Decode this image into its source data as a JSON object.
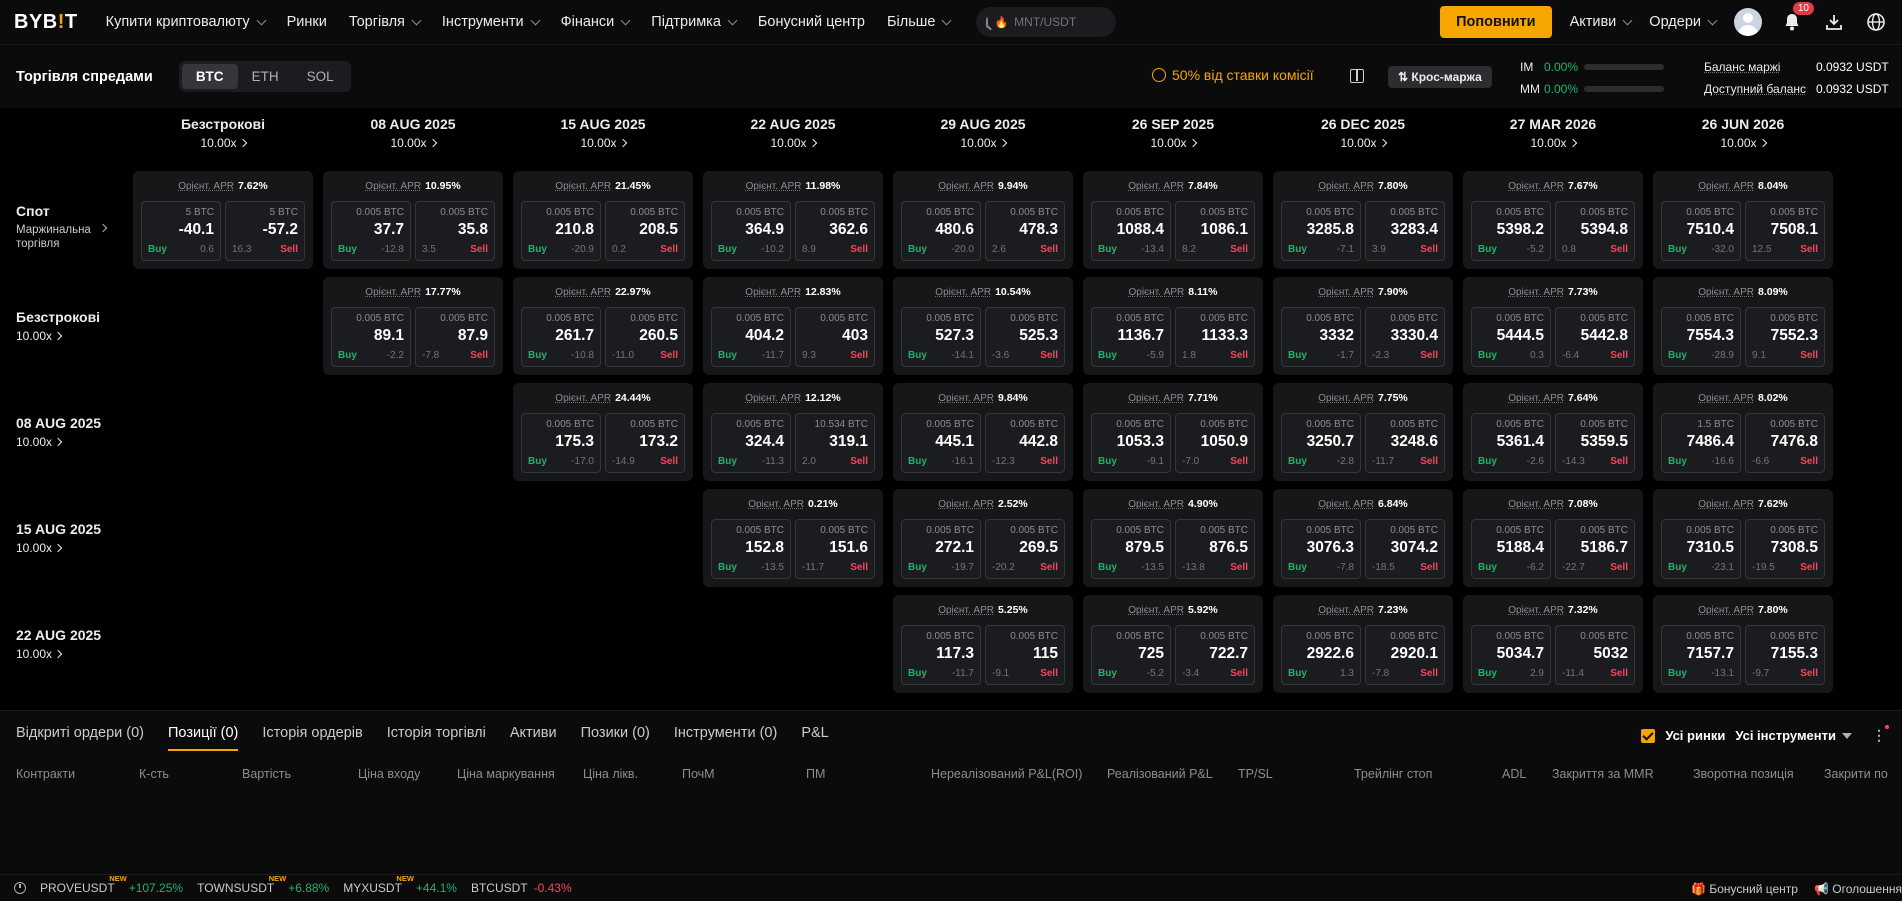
{
  "brand": {
    "logo_pre": "BYB",
    "logo_acc": "!",
    "logo_post": "T"
  },
  "nav": {
    "items": [
      {
        "label": "Купити криптовалюту",
        "dropdown": true
      },
      {
        "label": "Ринки",
        "dropdown": false
      },
      {
        "label": "Торгівля",
        "dropdown": true
      },
      {
        "label": "Інструменти",
        "dropdown": true
      },
      {
        "label": "Фінанси",
        "dropdown": true
      },
      {
        "label": "Підтримка",
        "dropdown": true
      },
      {
        "label": "Бонусний центр",
        "dropdown": false
      },
      {
        "label": "Більше",
        "dropdown": true
      }
    ],
    "search_placeholder": "MNT/USDT",
    "deposit_label": "Поповнити",
    "assets_label": "Активи",
    "orders_label": "Ордери",
    "notifications_count": "10"
  },
  "subheader": {
    "title": "Торгівля спредами",
    "coins": [
      "BTC",
      "ETH",
      "SOL"
    ],
    "active_coin": "BTC",
    "fee_promo": "50% від ставки комісії",
    "cross_margin_label": "Крос-маржа",
    "im_label": "IM",
    "im_value": "0.00%",
    "mm_label": "MM",
    "mm_value": "0.00%",
    "margin_balance_label": "Баланс маржі",
    "margin_balance_value": "0.0932 USDT",
    "available_balance_label": "Доступний баланс",
    "available_balance_value": "0.0932 USDT"
  },
  "matrix": {
    "apr_label": "Орієнт. APR",
    "buy_label": "Buy",
    "sell_label": "Sell",
    "columns": [
      {
        "date": "Безстрокові",
        "lev": "10.00x"
      },
      {
        "date": "08 AUG 2025",
        "lev": "10.00x"
      },
      {
        "date": "15 AUG 2025",
        "lev": "10.00x"
      },
      {
        "date": "22 AUG 2025",
        "lev": "10.00x"
      },
      {
        "date": "29 AUG 2025",
        "lev": "10.00x"
      },
      {
        "date": "26 SEP 2025",
        "lev": "10.00x"
      },
      {
        "date": "26 DEC 2025",
        "lev": "10.00x"
      },
      {
        "date": "27 MAR 2026",
        "lev": "10.00x"
      },
      {
        "date": "26 JUN 2026",
        "lev": "10.00x"
      }
    ],
    "rows": [
      {
        "title": "Спот",
        "sub": "Маржинальна торгівля",
        "kind": "spot"
      },
      {
        "title": "Безстрокові",
        "sub": "10.00x",
        "kind": "lev"
      },
      {
        "title": "08 AUG 2025",
        "sub": "10.00x",
        "kind": "lev"
      },
      {
        "title": "15 AUG 2025",
        "sub": "10.00x",
        "kind": "lev"
      },
      {
        "title": "22 AUG 2025",
        "sub": "10.00x",
        "kind": "lev"
      }
    ],
    "cells": [
      {
        "row": 0,
        "col": 0,
        "apr": "7.62%",
        "bsz": "5 BTC",
        "bp": "-40.1",
        "bch": "0.6",
        "ssz": "5 BTC",
        "sp": "-57.2",
        "sch": "16.3"
      },
      {
        "row": 0,
        "col": 1,
        "apr": "10.95%",
        "bsz": "0.005 BTC",
        "bp": "37.7",
        "bch": "-12.8",
        "ssz": "0.005 BTC",
        "sp": "35.8",
        "sch": "3.5"
      },
      {
        "row": 0,
        "col": 2,
        "apr": "21.45%",
        "bsz": "0.005 BTC",
        "bp": "210.8",
        "bch": "-20.9",
        "ssz": "0.005 BTC",
        "sp": "208.5",
        "sch": "0.2"
      },
      {
        "row": 0,
        "col": 3,
        "apr": "11.98%",
        "bsz": "0.005 BTC",
        "bp": "364.9",
        "bch": "-10.2",
        "ssz": "0.005 BTC",
        "sp": "362.6",
        "sch": "8.9"
      },
      {
        "row": 0,
        "col": 4,
        "apr": "9.94%",
        "bsz": "0.005 BTC",
        "bp": "480.6",
        "bch": "-20.0",
        "ssz": "0.005 BTC",
        "sp": "478.3",
        "sch": "2.6"
      },
      {
        "row": 0,
        "col": 5,
        "apr": "7.84%",
        "bsz": "0.005 BTC",
        "bp": "1088.4",
        "bch": "-13.4",
        "ssz": "0.005 BTC",
        "sp": "1086.1",
        "sch": "8.2"
      },
      {
        "row": 0,
        "col": 6,
        "apr": "7.80%",
        "bsz": "0.005 BTC",
        "bp": "3285.8",
        "bch": "-7.1",
        "ssz": "0.005 BTC",
        "sp": "3283.4",
        "sch": "3.9"
      },
      {
        "row": 0,
        "col": 7,
        "apr": "7.67%",
        "bsz": "0.005 BTC",
        "bp": "5398.2",
        "bch": "-5.2",
        "ssz": "0.005 BTC",
        "sp": "5394.8",
        "sch": "0.8"
      },
      {
        "row": 0,
        "col": 8,
        "apr": "8.04%",
        "bsz": "0.005 BTC",
        "bp": "7510.4",
        "bch": "-32.0",
        "ssz": "0.005 BTC",
        "sp": "7508.1",
        "sch": "12.5"
      },
      {
        "row": 1,
        "col": 1,
        "apr": "17.77%",
        "bsz": "0.005 BTC",
        "bp": "89.1",
        "bch": "-2.2",
        "ssz": "0.005 BTC",
        "sp": "87.9",
        "sch": "-7.8"
      },
      {
        "row": 1,
        "col": 2,
        "apr": "22.97%",
        "bsz": "0.005 BTC",
        "bp": "261.7",
        "bch": "-10.8",
        "ssz": "0.005 BTC",
        "sp": "260.5",
        "sch": "-11.0"
      },
      {
        "row": 1,
        "col": 3,
        "apr": "12.83%",
        "bsz": "0.005 BTC",
        "bp": "404.2",
        "bch": "-11.7",
        "ssz": "0.005 BTC",
        "sp": "403",
        "sch": "9.3"
      },
      {
        "row": 1,
        "col": 4,
        "apr": "10.54%",
        "bsz": "0.005 BTC",
        "bp": "527.3",
        "bch": "-14.1",
        "ssz": "0.005 BTC",
        "sp": "525.3",
        "sch": "-3.6"
      },
      {
        "row": 1,
        "col": 5,
        "apr": "8.11%",
        "bsz": "0.005 BTC",
        "bp": "1136.7",
        "bch": "-5.9",
        "ssz": "0.005 BTC",
        "sp": "1133.3",
        "sch": "1.8"
      },
      {
        "row": 1,
        "col": 6,
        "apr": "7.90%",
        "bsz": "0.005 BTC",
        "bp": "3332",
        "bch": "-1.7",
        "ssz": "0.005 BTC",
        "sp": "3330.4",
        "sch": "-2.3"
      },
      {
        "row": 1,
        "col": 7,
        "apr": "7.73%",
        "bsz": "0.005 BTC",
        "bp": "5444.5",
        "bch": "0.3",
        "ssz": "0.005 BTC",
        "sp": "5442.8",
        "sch": "-6.4"
      },
      {
        "row": 1,
        "col": 8,
        "apr": "8.09%",
        "bsz": "0.005 BTC",
        "bp": "7554.3",
        "bch": "-28.9",
        "ssz": "0.005 BTC",
        "sp": "7552.3",
        "sch": "9.1"
      },
      {
        "row": 2,
        "col": 2,
        "apr": "24.44%",
        "bsz": "0.005 BTC",
        "bp": "175.3",
        "bch": "-17.0",
        "ssz": "0.005 BTC",
        "sp": "173.2",
        "sch": "-14.9"
      },
      {
        "row": 2,
        "col": 3,
        "apr": "12.12%",
        "bsz": "0.005 BTC",
        "bp": "324.4",
        "bch": "-11.3",
        "ssz": "10.534 BTC",
        "sp": "319.1",
        "sch": "2.0"
      },
      {
        "row": 2,
        "col": 4,
        "apr": "9.84%",
        "bsz": "0.005 BTC",
        "bp": "445.1",
        "bch": "-16.1",
        "ssz": "0.005 BTC",
        "sp": "442.8",
        "sch": "-12.3"
      },
      {
        "row": 2,
        "col": 5,
        "apr": "7.71%",
        "bsz": "0.005 BTC",
        "bp": "1053.3",
        "bch": "-9.1",
        "ssz": "0.005 BTC",
        "sp": "1050.9",
        "sch": "-7.0"
      },
      {
        "row": 2,
        "col": 6,
        "apr": "7.75%",
        "bsz": "0.005 BTC",
        "bp": "3250.7",
        "bch": "-2.8",
        "ssz": "0.005 BTC",
        "sp": "3248.6",
        "sch": "-11.7"
      },
      {
        "row": 2,
        "col": 7,
        "apr": "7.64%",
        "bsz": "0.005 BTC",
        "bp": "5361.4",
        "bch": "-2.6",
        "ssz": "0.005 BTC",
        "sp": "5359.5",
        "sch": "-14.3"
      },
      {
        "row": 2,
        "col": 8,
        "apr": "8.02%",
        "bsz": "1.5 BTC",
        "bp": "7486.4",
        "bch": "-16.6",
        "ssz": "0.005 BTC",
        "sp": "7476.8",
        "sch": "-6.6"
      },
      {
        "row": 3,
        "col": 3,
        "apr": "0.21%",
        "bsz": "0.005 BTC",
        "bp": "152.8",
        "bch": "-13.5",
        "ssz": "0.005 BTC",
        "sp": "151.6",
        "sch": "-11.7"
      },
      {
        "row": 3,
        "col": 4,
        "apr": "2.52%",
        "bsz": "0.005 BTC",
        "bp": "272.1",
        "bch": "-19.7",
        "ssz": "0.005 BTC",
        "sp": "269.5",
        "sch": "-20.2"
      },
      {
        "row": 3,
        "col": 5,
        "apr": "4.90%",
        "bsz": "0.005 BTC",
        "bp": "879.5",
        "bch": "-13.5",
        "ssz": "0.005 BTC",
        "sp": "876.5",
        "sch": "-13.8"
      },
      {
        "row": 3,
        "col": 6,
        "apr": "6.84%",
        "bsz": "0.005 BTC",
        "bp": "3076.3",
        "bch": "-7.8",
        "ssz": "0.005 BTC",
        "sp": "3074.2",
        "sch": "-18.5"
      },
      {
        "row": 3,
        "col": 7,
        "apr": "7.08%",
        "bsz": "0.005 BTC",
        "bp": "5188.4",
        "bch": "-6.2",
        "ssz": "0.005 BTC",
        "sp": "5186.7",
        "sch": "-22.7"
      },
      {
        "row": 3,
        "col": 8,
        "apr": "7.62%",
        "bsz": "0.005 BTC",
        "bp": "7310.5",
        "bch": "-23.1",
        "ssz": "0.005 BTC",
        "sp": "7308.5",
        "sch": "-19.5"
      },
      {
        "row": 4,
        "col": 4,
        "apr": "5.25%",
        "bsz": "0.005 BTC",
        "bp": "117.3",
        "bch": "-11.7",
        "ssz": "0.005 BTC",
        "sp": "115",
        "sch": "-9.1"
      },
      {
        "row": 4,
        "col": 5,
        "apr": "5.92%",
        "bsz": "0.005 BTC",
        "bp": "725",
        "bch": "-5.2",
        "ssz": "0.005 BTC",
        "sp": "722.7",
        "sch": "-3.4"
      },
      {
        "row": 4,
        "col": 6,
        "apr": "7.23%",
        "bsz": "0.005 BTC",
        "bp": "2922.6",
        "bch": "1.3",
        "ssz": "0.005 BTC",
        "sp": "2920.1",
        "sch": "-7.8"
      },
      {
        "row": 4,
        "col": 7,
        "apr": "7.32%",
        "bsz": "0.005 BTC",
        "bp": "5034.7",
        "bch": "2.9",
        "ssz": "0.005 BTC",
        "sp": "5032",
        "sch": "-11.4"
      },
      {
        "row": 4,
        "col": 8,
        "apr": "7.80%",
        "bsz": "0.005 BTC",
        "bp": "7157.7",
        "bch": "-13.1",
        "ssz": "0.005 BTC",
        "sp": "7155.3",
        "sch": "-9.7"
      }
    ]
  },
  "bottom": {
    "tabs": [
      "Відкриті ордери (0)",
      "Позиції (0)",
      "Історія ордерів",
      "Історія торгівлі",
      "Активи",
      "Позики (0)",
      "Інструменти (0)",
      "P&L"
    ],
    "active_tab": 1,
    "all_markets_label": "Усі ринки",
    "all_instruments_label": "Усі інструменти",
    "columns": [
      "Контракти",
      "К-сть",
      "Вартість",
      "Ціна входу",
      "Ціна маркування",
      "Ціна лікв.",
      "ПочМ",
      "ПМ",
      "Нереалізований P&L(ROI)",
      "Реалізований P&L",
      "TP/SL",
      "Трейлінг стоп",
      "ADL",
      "Закриття за MMR",
      "Зворотна позиція",
      "Закрити по"
    ]
  },
  "ticker": {
    "items": [
      {
        "symbol": "PROVEUSDT",
        "new": "NEW",
        "change": "+107.25%",
        "dir": "up"
      },
      {
        "symbol": "TOWNSUSDT",
        "new": "NEW",
        "change": "+6.88%",
        "dir": "up"
      },
      {
        "symbol": "MYXUSDT",
        "new": "NEW",
        "change": "+44.1%",
        "dir": "up"
      },
      {
        "symbol": "BTCUSDT",
        "new": "",
        "change": "-0.43%",
        "dir": "dn"
      }
    ],
    "bonus_center": "Бонусний центр",
    "announcements": "Оголошення"
  },
  "colors": {
    "accent": "#f7a600",
    "buy": "#20b26c",
    "sell": "#f6465d",
    "bg": "#000000",
    "cell_bg": "#161719"
  },
  "icons": [
    "search-icon",
    "flame-icon",
    "user-avatar-icon",
    "bell-icon",
    "download-icon",
    "globe-icon",
    "fee-promo-icon",
    "panel-layout-icon",
    "swap-icon",
    "clock-icon",
    "chevron-right-icon",
    "chevron-down-icon"
  ]
}
